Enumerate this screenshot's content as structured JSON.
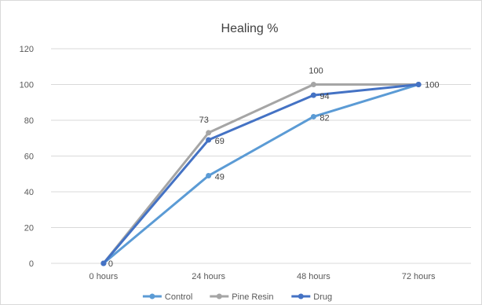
{
  "chart_data": {
    "type": "line",
    "title": "Healing %",
    "categories": [
      "0 hours",
      "24 hours",
      "48 hours",
      "72 hours"
    ],
    "ylim": [
      0,
      120
    ],
    "yticks": [
      0,
      20,
      40,
      60,
      80,
      100,
      120
    ],
    "grid": true,
    "legend": "bottom",
    "series": [
      {
        "name": "Control",
        "values": [
          0,
          49,
          82,
          100
        ],
        "color": "#5b9bd5",
        "labels": [
          "0",
          "49",
          "82",
          "100"
        ]
      },
      {
        "name": "Pine Resin",
        "values": [
          0,
          73,
          100,
          100
        ],
        "color": "#a5a5a5",
        "labels": [
          "",
          "73",
          "100",
          ""
        ]
      },
      {
        "name": "Drug",
        "values": [
          0,
          69,
          94,
          100
        ],
        "color": "#4472c4",
        "labels": [
          "",
          "69",
          "94",
          ""
        ]
      }
    ]
  }
}
